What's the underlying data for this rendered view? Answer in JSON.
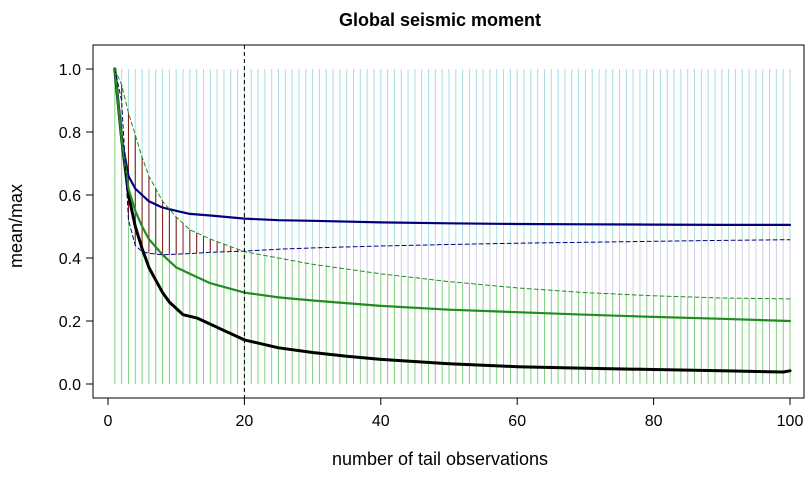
{
  "chart_data": {
    "type": "line",
    "title": "Global seismic moment",
    "xlabel": "number of tail observations",
    "ylabel": "mean/max",
    "xlim": [
      1,
      100
    ],
    "ylim": [
      0,
      1
    ],
    "x_ticks": [
      0,
      20,
      40,
      60,
      80,
      100
    ],
    "y_ticks": [
      0.0,
      0.2,
      0.4,
      0.6,
      0.8,
      1.0
    ],
    "x_tick_labels": [
      "0",
      "20",
      "40",
      "60",
      "80",
      "100"
    ],
    "y_tick_labels": [
      "0.0",
      "0.2",
      "0.4",
      "0.6",
      "0.8",
      "1.0"
    ],
    "vline_x": 20,
    "grid": false,
    "series": [
      {
        "style": "solid-thick",
        "color": "#000000",
        "x": [
          1,
          2,
          3,
          4,
          5,
          6,
          7,
          8,
          9,
          10,
          11,
          12,
          13,
          14,
          15,
          16,
          18,
          20,
          25,
          30,
          35,
          40,
          50,
          60,
          70,
          80,
          90,
          99,
          100
        ],
        "y": [
          1.0,
          0.78,
          0.6,
          0.5,
          0.43,
          0.37,
          0.33,
          0.29,
          0.26,
          0.24,
          0.22,
          0.215,
          0.21,
          0.2,
          0.19,
          0.18,
          0.16,
          0.14,
          0.115,
          0.1,
          0.088,
          0.078,
          0.064,
          0.055,
          0.05,
          0.046,
          0.042,
          0.038,
          0.042
        ]
      },
      {
        "style": "solid",
        "color": "#00007f",
        "x": [
          1,
          2,
          3,
          4,
          5,
          6,
          8,
          10,
          12,
          15,
          20,
          25,
          30,
          40,
          50,
          60,
          70,
          80,
          90,
          100
        ],
        "y": [
          1.0,
          0.78,
          0.66,
          0.62,
          0.6,
          0.58,
          0.56,
          0.55,
          0.54,
          0.535,
          0.525,
          0.52,
          0.518,
          0.513,
          0.51,
          0.508,
          0.507,
          0.506,
          0.505,
          0.505
        ]
      },
      {
        "style": "solid",
        "color": "#228b22",
        "x": [
          1,
          2,
          3,
          4,
          5,
          6,
          8,
          10,
          12,
          15,
          20,
          25,
          30,
          40,
          50,
          60,
          70,
          80,
          90,
          100
        ],
        "y": [
          1.0,
          0.78,
          0.62,
          0.55,
          0.5,
          0.46,
          0.41,
          0.37,
          0.35,
          0.32,
          0.29,
          0.275,
          0.265,
          0.248,
          0.236,
          0.228,
          0.22,
          0.213,
          0.207,
          0.2
        ]
      },
      {
        "style": "dashed",
        "color": "#00007f",
        "x": [
          1,
          2,
          3,
          4,
          5,
          6,
          8,
          10,
          12,
          15,
          20,
          25,
          30,
          40,
          50,
          60,
          70,
          80,
          90,
          100
        ],
        "y": [
          1.0,
          0.9,
          0.52,
          0.44,
          0.42,
          0.415,
          0.41,
          0.412,
          0.414,
          0.418,
          0.422,
          0.428,
          0.432,
          0.438,
          0.443,
          0.447,
          0.45,
          0.453,
          0.456,
          0.458
        ]
      },
      {
        "style": "dashed",
        "color": "#228b22",
        "x": [
          1,
          2,
          3,
          4,
          5,
          6,
          8,
          10,
          12,
          15,
          20,
          25,
          30,
          40,
          50,
          60,
          70,
          80,
          90,
          100
        ],
        "y": [
          1.0,
          0.95,
          0.86,
          0.79,
          0.72,
          0.66,
          0.58,
          0.53,
          0.49,
          0.46,
          0.42,
          0.4,
          0.38,
          0.35,
          0.325,
          0.305,
          0.29,
          0.28,
          0.273,
          0.27
        ]
      }
    ],
    "vertical_bands": [
      {
        "name": "",
        "color": "#a8dde3",
        "from_series": 3,
        "to": 1.0,
        "x_start": 1,
        "x_end": 100
      },
      {
        "name": "",
        "color": "#7fcf7f",
        "from": 0.0,
        "to_series": 4,
        "x_start": 1,
        "x_end": 100
      },
      {
        "name": "",
        "color": "#8b1a1a",
        "between_series": [
          3,
          4
        ],
        "x_start": 2,
        "x_end": 20
      },
      {
        "name": "",
        "color": "#cfcfe8",
        "between_series": [
          3,
          4
        ],
        "x_start": 20,
        "x_end": 100
      }
    ]
  }
}
